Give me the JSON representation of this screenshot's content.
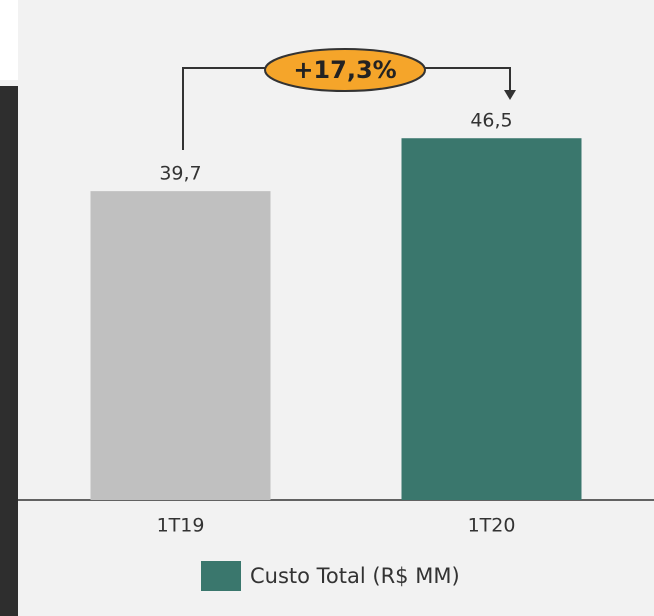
{
  "chart_data": {
    "type": "bar",
    "categories": [
      "1T19",
      "1T20"
    ],
    "series": [
      {
        "name": "Custo Total (R$ MM)",
        "color": "#3a776d",
        "bar_colors": [
          "#c0c0c0",
          "#3a776d"
        ],
        "values": [
          39.7,
          46.5
        ],
        "value_labels": [
          "39,7",
          "46,5"
        ]
      }
    ],
    "annotation": "+17,3%",
    "ylim": [
      0,
      50
    ]
  }
}
